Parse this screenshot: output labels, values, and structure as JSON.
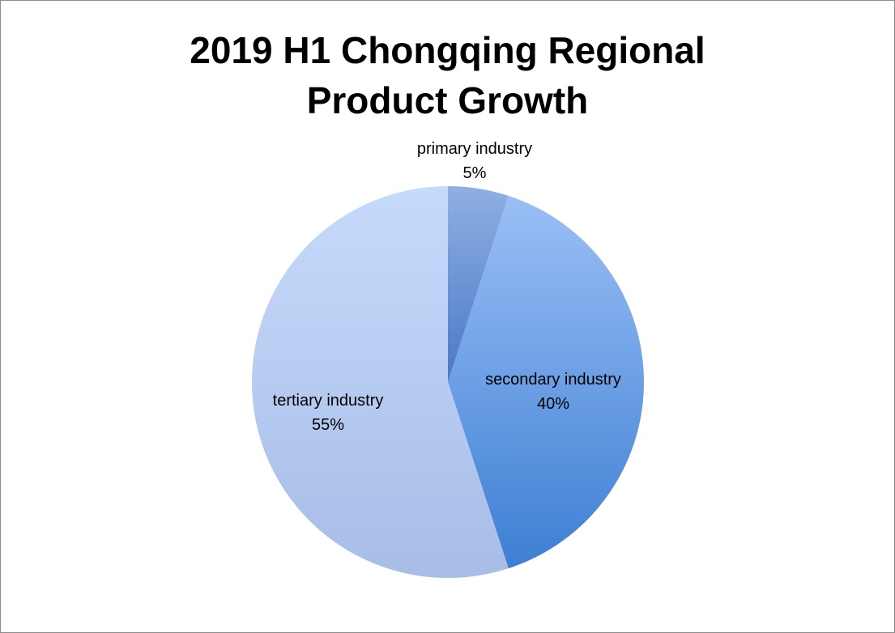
{
  "chart_data": {
    "type": "pie",
    "title_lines": [
      "2019 H1 Chongqing Regional",
      "Product Growth"
    ],
    "slices": [
      {
        "label": "primary industry",
        "value": 5,
        "value_label": "5%",
        "color_light": "#8fb0e2",
        "color_dark": "#4a78c8"
      },
      {
        "label": "secondary industry",
        "value": 40,
        "value_label": "40%",
        "color_light": "#9bbff6",
        "color_dark": "#3d7fd3"
      },
      {
        "label": "tertiary industry",
        "value": 55,
        "value_label": "55%",
        "color_light": "#c6dafb",
        "color_dark": "#a7bde6"
      }
    ],
    "legend": "none"
  }
}
